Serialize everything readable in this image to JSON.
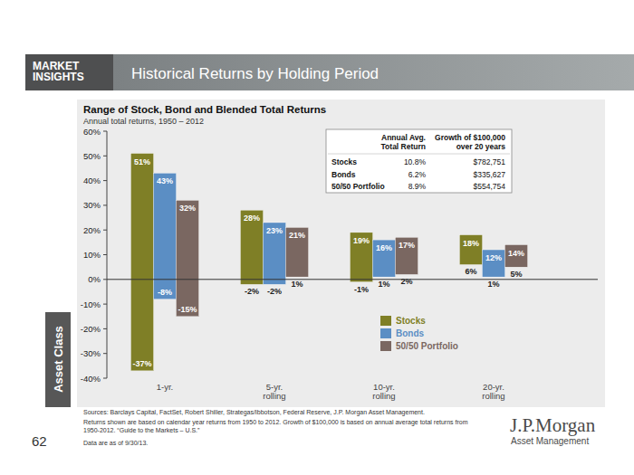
{
  "header": {
    "badge": "MARKET\nINSIGHTS",
    "title": "Historical Returns by Holding Period"
  },
  "section": "Asset Class",
  "page_number": "62",
  "chart_data": {
    "type": "bar",
    "title": "Range of Stock, Bond and Blended Total Returns",
    "subtitle": "Annual total returns, 1950 – 2012",
    "categories": [
      "1-yr.",
      "5-yr.\nrolling",
      "10-yr.\nrolling",
      "20-yr.\nrolling"
    ],
    "series": [
      {
        "name": "Stocks",
        "color": "#7f7f26",
        "values": [
          51,
          28,
          19,
          18
        ],
        "value_labels": [
          "51%",
          "28%",
          "19%",
          "18%"
        ],
        "low": [
          -37,
          -2,
          -1,
          6
        ],
        "low_labels": [
          "-37%",
          "-2%",
          "-1%",
          "6%"
        ]
      },
      {
        "name": "Bonds",
        "color": "#5b8ec4",
        "values": [
          43,
          23,
          16,
          12
        ],
        "value_labels": [
          "43%",
          "23%",
          "16%",
          "12%"
        ],
        "low": [
          -8,
          -2,
          1,
          1
        ],
        "low_labels": [
          "-8%",
          "-2%",
          "1%",
          "1%"
        ]
      },
      {
        "name": "50/50 Portfolio",
        "color": "#7a6761",
        "values": [
          32,
          21,
          17,
          14
        ],
        "value_labels": [
          "32%",
          "21%",
          "17%",
          "14%"
        ],
        "low": [
          -15,
          1,
          2,
          5
        ],
        "low_labels": [
          "-15%",
          "1%",
          "2%",
          "5%"
        ]
      }
    ],
    "ylim": [
      -40,
      60
    ],
    "yticks": [
      {
        "value": -40,
        "label": "-40%"
      },
      {
        "value": -30,
        "label": "-30%"
      },
      {
        "value": -20,
        "label": "-20%"
      },
      {
        "value": -10,
        "label": "-10%"
      },
      {
        "value": 0,
        "label": "0%"
      },
      {
        "value": 10,
        "label": "10%"
      },
      {
        "value": 20,
        "label": "20%"
      },
      {
        "value": 30,
        "label": "30%"
      },
      {
        "value": 40,
        "label": "40%"
      },
      {
        "value": 50,
        "label": "50%"
      },
      {
        "value": 60,
        "label": "60%"
      }
    ],
    "grid": false,
    "legend": "bottom",
    "data_labels": true
  },
  "inset_table": {
    "columns": [
      "Annual Avg.\nTotal Return",
      "Growth of $100,000\nover 20 years"
    ],
    "rows": [
      [
        "Stocks",
        "10.8%",
        "$782,751"
      ],
      [
        "Bonds",
        "6.2%",
        "$335,627"
      ],
      [
        "50/50 Portfolio",
        "8.9%",
        "$554,754"
      ]
    ]
  },
  "footer": {
    "sources": "Sources: Barclays Capital, FactSet, Robert Shiller, Strategas/Ibbotson, Federal Reserve, J.P. Morgan Asset Management.",
    "notes": [
      "Returns shown are based on calendar year returns from 1950 to 2012. Growth of $100,000 is based on annual average total returns from",
      "1950-2012. “Guide to the Markets – U.S.”"
    ],
    "date_note": "Data are as of 9/30/13."
  },
  "logo": {
    "name": "J.P.Morgan",
    "subtitle": "Asset Management"
  }
}
